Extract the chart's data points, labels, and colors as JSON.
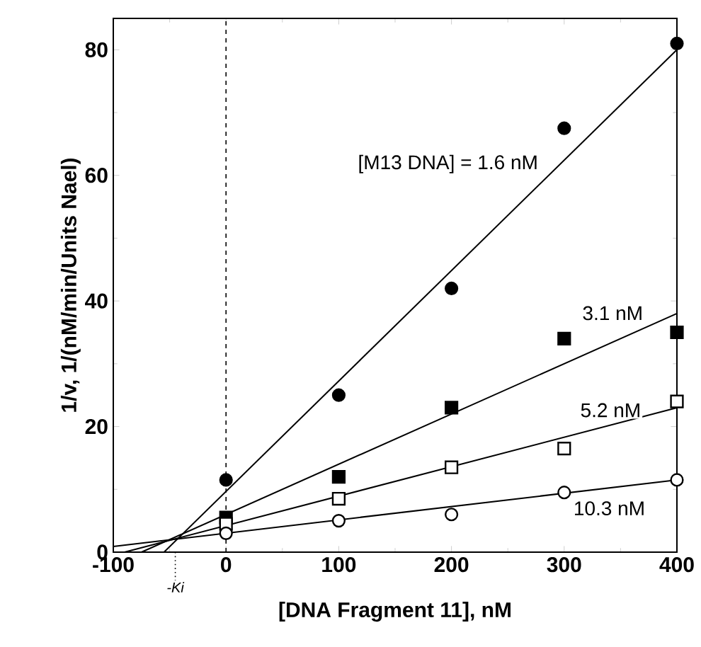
{
  "chart_data": {
    "type": "scatter",
    "xlabel": "[DNA Fragment 11], nM",
    "ylabel": "1/v,  1/(nM/min/Units Nael)",
    "x": [
      0,
      100,
      200,
      300,
      400
    ],
    "xlim": [
      -100,
      400
    ],
    "xticks": [
      -100,
      0,
      100,
      200,
      300,
      400
    ],
    "ylim": [
      0,
      85
    ],
    "yticks": [
      0,
      20,
      40,
      60,
      80
    ],
    "series": [
      {
        "color": "#000000",
        "marker": "circle",
        "values": [
          11.5,
          25,
          42,
          67.5,
          81
        ]
      },
      {
        "color": "#000000",
        "marker": "square",
        "values": [
          5.5,
          12,
          23,
          34,
          35
        ]
      },
      {
        "color": "#ffffff",
        "marker": "square",
        "values": [
          4.5,
          8.5,
          13.5,
          16.5,
          24
        ]
      },
      {
        "color": "#ffffff",
        "marker": "circle",
        "values": [
          3,
          5,
          6,
          9.5,
          11.5
        ]
      },
      {
        "type": "line",
        "name": "[M13 DNA] = 1.6 nM",
        "color": "#000000",
        "x": [
          -55,
          400
        ],
        "values": [
          0,
          80
        ]
      },
      {
        "type": "line",
        "name": "3.1 nM",
        "color": "#000000",
        "x": [
          -75,
          400
        ],
        "values": [
          0,
          38
        ]
      },
      {
        "type": "line",
        "name": "5.2 nM",
        "color": "#000000",
        "x": [
          -90,
          400
        ],
        "values": [
          0,
          23
        ]
      },
      {
        "type": "line",
        "name": "10.3 nM",
        "color": "#000000",
        "x": [
          -100,
          400
        ],
        "values": [
          0.9,
          11.5
        ]
      }
    ],
    "ref_lines": [
      {
        "axis": "x",
        "value": 0,
        "line_style": "dashed"
      },
      {
        "axis": "x",
        "value": -45,
        "label": "-Ki",
        "line_style": "dotted"
      }
    ]
  }
}
